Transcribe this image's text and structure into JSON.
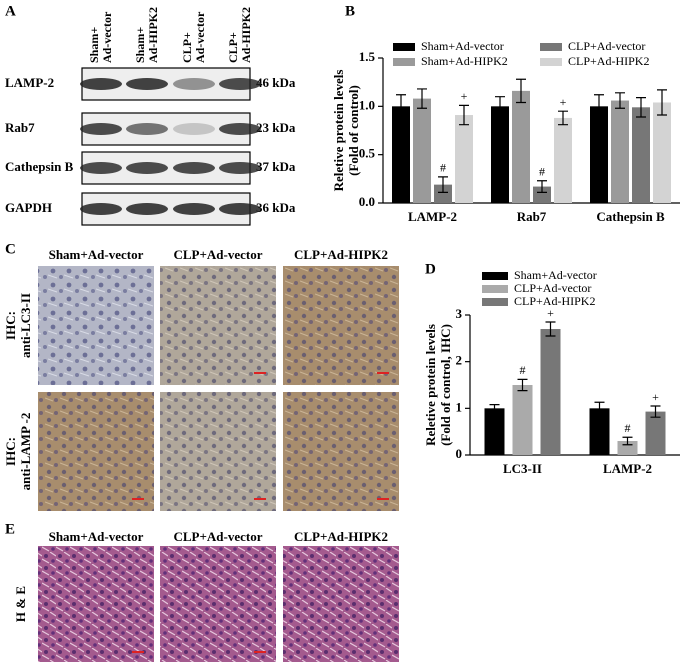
{
  "panels": {
    "A": {
      "label": "A",
      "lanes": [
        [
          "Sham+",
          "Ad-vector"
        ],
        [
          "Sham+",
          "Ad-HIPK2"
        ],
        [
          "CLP+",
          "Ad-vector"
        ],
        [
          "CLP+",
          "Ad-HIPK2"
        ]
      ],
      "rows": [
        {
          "name": "LAMP-2",
          "size": "46 kDa"
        },
        {
          "name": "Rab7",
          "size": "23 kDa"
        },
        {
          "name": "Cathepsin B",
          "size": "37 kDa"
        },
        {
          "name": "GAPDH",
          "size": "36 kDa"
        }
      ]
    },
    "C": {
      "label": "C",
      "columns": [
        "Sham+Ad-vector",
        "CLP+Ad-vector",
        "CLP+Ad-HIPK2"
      ],
      "rows": [
        [
          "IHC:",
          "anti-LC3-II"
        ],
        [
          "IHC:",
          "anti-LAMP -2"
        ]
      ]
    },
    "E": {
      "label": "E",
      "columns": [
        "Sham+Ad-vector",
        "CLP+Ad-vector",
        "CLP+Ad-HIPK2"
      ],
      "row": "H & E"
    }
  },
  "chart_data": [
    {
      "type": "bar",
      "panel_label": "B",
      "ylabel": [
        "Reletive protein levels",
        "(Fold of control)"
      ],
      "categories": [
        "LAMP-2",
        "Rab7",
        "Cathepsin B"
      ],
      "ylim": [
        0,
        1.5
      ],
      "yticks": [
        {
          "value": 0,
          "label": "0.0"
        },
        {
          "value": 0.5,
          "label": "0.5"
        },
        {
          "value": 1,
          "label": "1.0"
        },
        {
          "value": 1.5,
          "label": "1.5"
        }
      ],
      "series": [
        {
          "name": "Sham+Ad-vector",
          "color": "#000000",
          "values": [
            1.0,
            1.0,
            1.0
          ],
          "errors": [
            0.12,
            0.1,
            0.12
          ],
          "annotations": [
            null,
            null,
            null
          ]
        },
        {
          "name": "Sham+Ad-HIPK2",
          "color": "#9a9a9a",
          "values": [
            1.08,
            1.16,
            1.06
          ],
          "errors": [
            0.1,
            0.12,
            0.08
          ],
          "annotations": [
            null,
            null,
            null
          ]
        },
        {
          "name": "CLP+Ad-vector",
          "color": "#777777",
          "values": [
            0.19,
            0.17,
            0.99
          ],
          "errors": [
            0.08,
            0.06,
            0.1
          ],
          "annotations": [
            "#",
            "#",
            null
          ]
        },
        {
          "name": "CLP+Ad-HIPK2",
          "color": "#d3d3d3",
          "values": [
            0.91,
            0.88,
            1.04
          ],
          "errors": [
            0.1,
            0.07,
            0.13
          ],
          "annotations": [
            "+",
            "+",
            null
          ]
        }
      ]
    },
    {
      "type": "bar",
      "panel_label": "D",
      "ylabel": [
        "Reletive protein levels",
        "(Fold of control, IHC)"
      ],
      "categories": [
        "LC3-II",
        "LAMP-2"
      ],
      "ylim": [
        0,
        3
      ],
      "yticks": [
        0,
        1,
        2,
        3
      ],
      "series": [
        {
          "name": "Sham+Ad-vector",
          "color": "#000000",
          "values": [
            1.0,
            1.0
          ],
          "errors": [
            0.08,
            0.13
          ],
          "annotations": [
            null,
            null
          ]
        },
        {
          "name": "CLP+Ad-vector",
          "color": "#aaaaaa",
          "values": [
            1.5,
            0.3
          ],
          "errors": [
            0.12,
            0.08
          ],
          "annotations": [
            "#",
            "#"
          ]
        },
        {
          "name": "CLP+Ad-HIPK2",
          "color": "#777777",
          "values": [
            2.7,
            0.93
          ],
          "errors": [
            0.15,
            0.12
          ],
          "annotations": [
            "+",
            "+"
          ]
        }
      ]
    }
  ]
}
